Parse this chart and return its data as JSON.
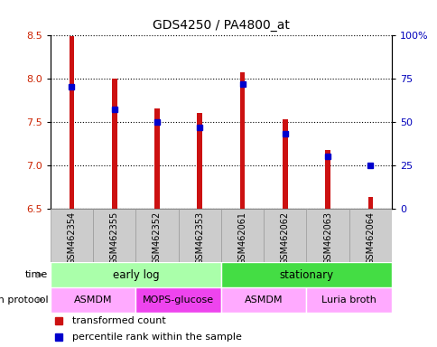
{
  "title": "GDS4250 / PA4800_at",
  "samples": [
    "GSM462354",
    "GSM462355",
    "GSM462352",
    "GSM462353",
    "GSM462061",
    "GSM462062",
    "GSM462063",
    "GSM462064"
  ],
  "bar_tops": [
    8.49,
    8.0,
    7.65,
    7.6,
    8.07,
    7.53,
    7.18,
    6.63
  ],
  "bar_bottom": 6.5,
  "percentile_ranks": [
    70,
    57,
    50,
    47,
    72,
    43,
    30,
    25
  ],
  "ylim_left": [
    6.5,
    8.5
  ],
  "ylim_right": [
    0,
    100
  ],
  "yticks_left": [
    6.5,
    7.0,
    7.5,
    8.0,
    8.5
  ],
  "yticks_right": [
    0,
    25,
    50,
    75,
    100
  ],
  "ytick_labels_right": [
    "0",
    "25",
    "50",
    "75",
    "100%"
  ],
  "bar_color": "#cc1111",
  "dot_color": "#0000cc",
  "bar_width": 0.12,
  "time_labels": [
    {
      "label": "early log",
      "start": 0,
      "end": 4,
      "color": "#aaffaa"
    },
    {
      "label": "stationary",
      "start": 4,
      "end": 8,
      "color": "#44dd44"
    }
  ],
  "protocol_labels": [
    {
      "label": "ASMDM",
      "start": 0,
      "end": 2,
      "color": "#ffaaff"
    },
    {
      "label": "MOPS-glucose",
      "start": 2,
      "end": 4,
      "color": "#ee44ee"
    },
    {
      "label": "ASMDM",
      "start": 4,
      "end": 6,
      "color": "#ffaaff"
    },
    {
      "label": "Luria broth",
      "start": 6,
      "end": 8,
      "color": "#ffaaff"
    }
  ],
  "time_row_label": "time",
  "protocol_row_label": "growth protocol",
  "legend_items": [
    {
      "label": "transformed count",
      "color": "#cc1111"
    },
    {
      "label": "percentile rank within the sample",
      "color": "#0000cc"
    }
  ],
  "xtick_bg_color": "#cccccc",
  "xtick_border_color": "#999999"
}
